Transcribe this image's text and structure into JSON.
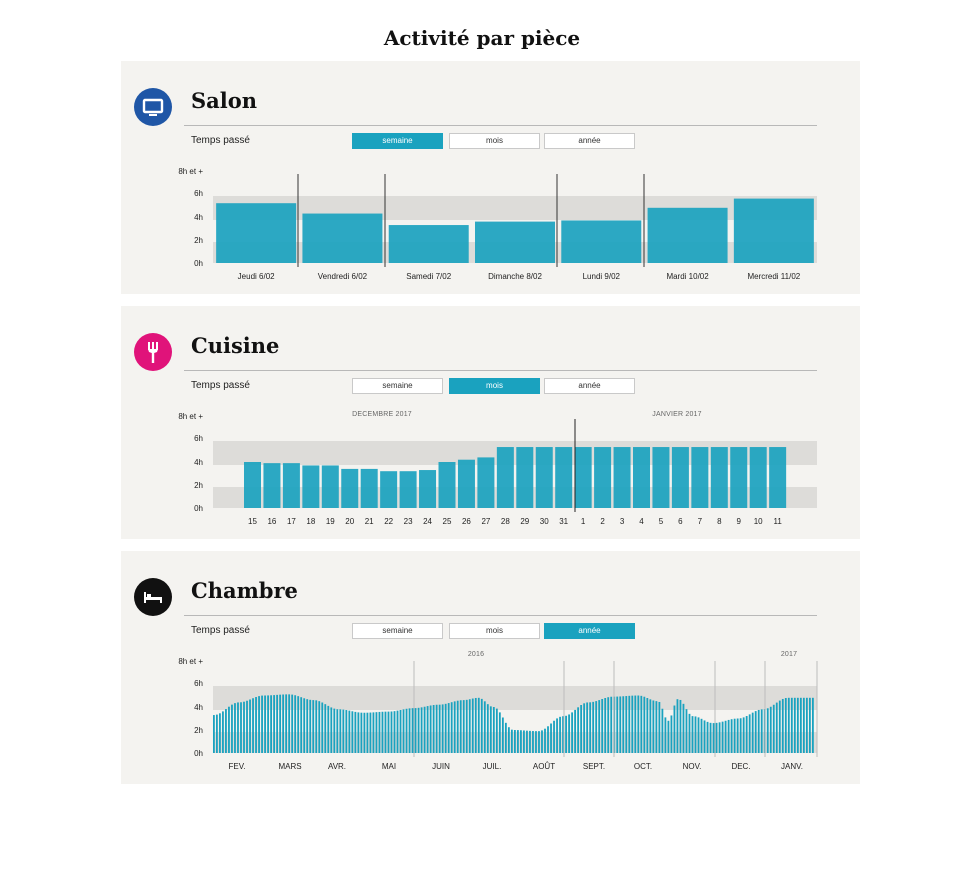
{
  "page": {
    "title": "Activité par pièce"
  },
  "colors": {
    "bar": "#1aa2bf",
    "band": "#dddcd9",
    "panel": "#f4f3f0",
    "salon_icon": "#1f56a6",
    "cuisine_icon": "#e0137a",
    "chambre_icon": "#111111"
  },
  "panels": [
    {
      "name": "Salon",
      "icon": "tv-icon",
      "temps_label": "Temps passé",
      "tabs": [
        "semaine",
        "mois",
        "année"
      ],
      "active_tab": "semaine"
    },
    {
      "name": "Cuisine",
      "icon": "fork-icon",
      "temps_label": "Temps passé",
      "tabs": [
        "semaine",
        "mois",
        "année"
      ],
      "active_tab": "mois"
    },
    {
      "name": "Chambre",
      "icon": "bed-icon",
      "temps_label": "Temps passé",
      "tabs": [
        "semaine",
        "mois",
        "année"
      ],
      "active_tab": "année"
    }
  ],
  "chart_data": [
    {
      "type": "bar",
      "title": "Salon",
      "y_ticks": [
        "0h",
        "2h",
        "4h",
        "6h",
        "8h et +"
      ],
      "ylim": [
        0,
        8
      ],
      "grid": false,
      "categories": [
        "Jeudi 6/02",
        "Vendredi 6/02",
        "Samedi 7/02",
        "Dimanche 8/02",
        "Lundi 9/02",
        "Mardi 10/02",
        "Mercredi 11/02"
      ],
      "values": [
        5.2,
        4.3,
        3.3,
        3.6,
        3.7,
        4.8,
        5.6
      ]
    },
    {
      "type": "bar",
      "title": "Cuisine",
      "y_ticks": [
        "0h",
        "2h",
        "4h",
        "6h",
        "8h et +"
      ],
      "ylim": [
        0,
        8
      ],
      "grid": false,
      "periods": [
        "DECEMBRE 2017",
        "JANVIER 2017"
      ],
      "categories": [
        "15",
        "16",
        "17",
        "18",
        "19",
        "20",
        "21",
        "22",
        "23",
        "24",
        "25",
        "26",
        "27",
        "28",
        "29",
        "30",
        "31",
        "1",
        "2",
        "3",
        "4",
        "5",
        "6",
        "7",
        "8",
        "9",
        "10",
        "11"
      ],
      "values": [
        4.0,
        3.9,
        3.9,
        3.7,
        3.7,
        3.4,
        3.4,
        3.2,
        3.2,
        3.3,
        4.0,
        4.2,
        4.4,
        5.3,
        5.3,
        5.3,
        5.3,
        5.3,
        5.3,
        5.3,
        5.3,
        5.3,
        5.3,
        5.3,
        5.3,
        5.3,
        5.3,
        5.3
      ]
    },
    {
      "type": "area",
      "title": "Chambre",
      "y_ticks": [
        "0h",
        "2h",
        "4h",
        "6h",
        "8h et +"
      ],
      "ylim": [
        0,
        8
      ],
      "grid": false,
      "periods": [
        "2016",
        "2017"
      ],
      "months": [
        "FEV.",
        "MARS",
        "AVR.",
        "MAI",
        "JUIN",
        "JUIL.",
        "AOÛT",
        "SEPT.",
        "OCT.",
        "NOV.",
        "DEC.",
        "JANV."
      ],
      "x": [
        0,
        0.5,
        1,
        1.5,
        2,
        2.5,
        3,
        3.5,
        4,
        4.5,
        5,
        5.3,
        5.6,
        6,
        6.5,
        7,
        7.5,
        8,
        8.5,
        8.9,
        9.1,
        9.3,
        9.6,
        10,
        10.5,
        11,
        11.5,
        12
      ],
      "values": [
        3.3,
        4.4,
        5.0,
        5.1,
        4.6,
        3.8,
        3.5,
        3.6,
        3.9,
        4.2,
        4.6,
        4.8,
        4.0,
        2.0,
        1.9,
        3.2,
        4.4,
        4.9,
        5.0,
        4.5,
        2.8,
        4.7,
        3.2,
        2.6,
        3.0,
        3.8,
        4.8,
        4.8
      ]
    }
  ]
}
